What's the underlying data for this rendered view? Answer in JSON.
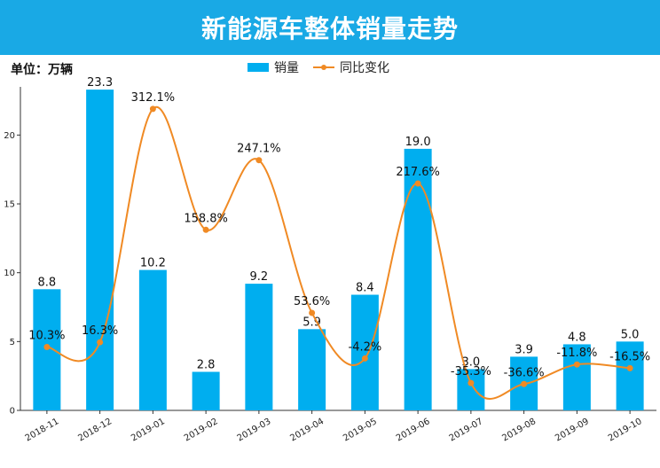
{
  "banner": {
    "title": "新能源车整体销量走势"
  },
  "unit_label": "单位：万辆",
  "legend": {
    "bar_label": "销量",
    "line_label": "同比变化"
  },
  "colors": {
    "banner": "#19A9E5",
    "bar": "#00AEEF",
    "line": "#F08A24"
  },
  "chart_data": {
    "type": "bar",
    "categories": [
      "2018-11",
      "2018-12",
      "2019-01",
      "2019-02",
      "2019-03",
      "2019-04",
      "2019-05",
      "2019-06",
      "2019-07",
      "2019-08",
      "2019-09",
      "2019-10"
    ],
    "series": [
      {
        "name": "销量",
        "type": "bar",
        "values": [
          8.8,
          23.3,
          10.2,
          2.8,
          9.2,
          5.9,
          8.4,
          19.0,
          3.0,
          3.9,
          4.8,
          5.0
        ],
        "labels": [
          "8.8",
          "23.3",
          "10.2",
          "2.8",
          "9.2",
          "5.9",
          "8.4",
          "19.0",
          "3.0",
          "3.9",
          "4.8",
          "5.0"
        ]
      },
      {
        "name": "同比变化",
        "type": "line",
        "values": [
          10.3,
          16.3,
          312.1,
          158.8,
          247.1,
          53.6,
          -4.2,
          217.6,
          -35.3,
          -36.6,
          -11.8,
          -16.5
        ],
        "labels": [
          "10.3%",
          "16.3%",
          "312.1%",
          "158.8%",
          "247.1%",
          "53.6%",
          "-4.2%",
          "217.6%",
          "-35.3%",
          "-36.6%",
          "-11.8%",
          "-16.5%"
        ],
        "ylim": [
          -70,
          340
        ],
        "axis_visible": false,
        "smooth": true
      }
    ],
    "ylim": [
      0,
      23.5
    ],
    "yticks": [
      0,
      5,
      10,
      15,
      20
    ],
    "xlabel": "",
    "ylabel": "",
    "grid": false,
    "legend_position": "top-center"
  }
}
